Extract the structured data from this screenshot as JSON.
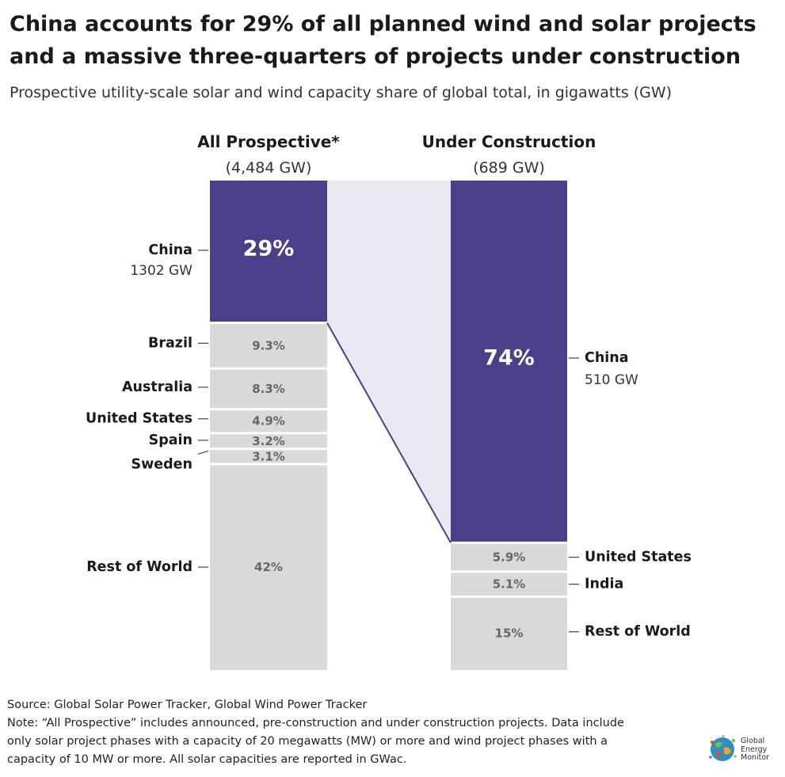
{
  "title_line1": "China accounts for 29% of all planned wind and solar projects",
  "title_line2": "and a massive three-quarters of projects under construction",
  "subtitle": "Prospective utility-scale solar and wind capacity share of global total, in gigawatts (GW)",
  "chart_data": {
    "type": "bar",
    "stacked": true,
    "normalized": true,
    "columns": [
      {
        "header": "All Prospective*",
        "total": "(4,484 GW)",
        "segments": [
          {
            "country": "China",
            "gw": "1302 GW",
            "share": 29,
            "label": "29%",
            "highlight": true
          },
          {
            "country": "Brazil",
            "share": 9.3,
            "label": "9.3%"
          },
          {
            "country": "Australia",
            "share": 8.3,
            "label": "8.3%"
          },
          {
            "country": "United States",
            "share": 4.9,
            "label": "4.9%"
          },
          {
            "country": "Spain",
            "share": 3.2,
            "label": "3.2%"
          },
          {
            "country": "Sweden",
            "share": 3.1,
            "label": "3.1%"
          },
          {
            "country": "Rest of World",
            "share": 42,
            "label": "42%"
          }
        ]
      },
      {
        "header": "Under Construction",
        "total": "(689 GW)",
        "segments": [
          {
            "country": "China",
            "gw": "510 GW",
            "share": 74,
            "label": "74%",
            "highlight": true
          },
          {
            "country": "United States",
            "share": 5.9,
            "label": "5.9%"
          },
          {
            "country": "India",
            "share": 5.1,
            "label": "5.1%"
          },
          {
            "country": "Rest of World",
            "share": 15,
            "label": "15%"
          }
        ]
      }
    ],
    "colors": {
      "highlight": "#4b3f8a",
      "other": "#d9d9d9",
      "connector": "#ebe8f2",
      "highlight_text": "#ffffff",
      "other_text": "#666666"
    }
  },
  "footer": {
    "source": "Source: Global Solar Power Tracker, Global Wind Power Tracker",
    "note_line1": "Note: “All Prospective” includes announced, pre-construction and under construction projects. Data include",
    "note_line2": "only solar project phases with a capacity of 20 megawatts (MW) or more and wind project phases with a",
    "note_line3": "capacity of 10 MW or more. All solar capacities are reported in GWac."
  },
  "logo": {
    "line1": "Global",
    "line2": "Energy",
    "line3": "Monitor"
  }
}
